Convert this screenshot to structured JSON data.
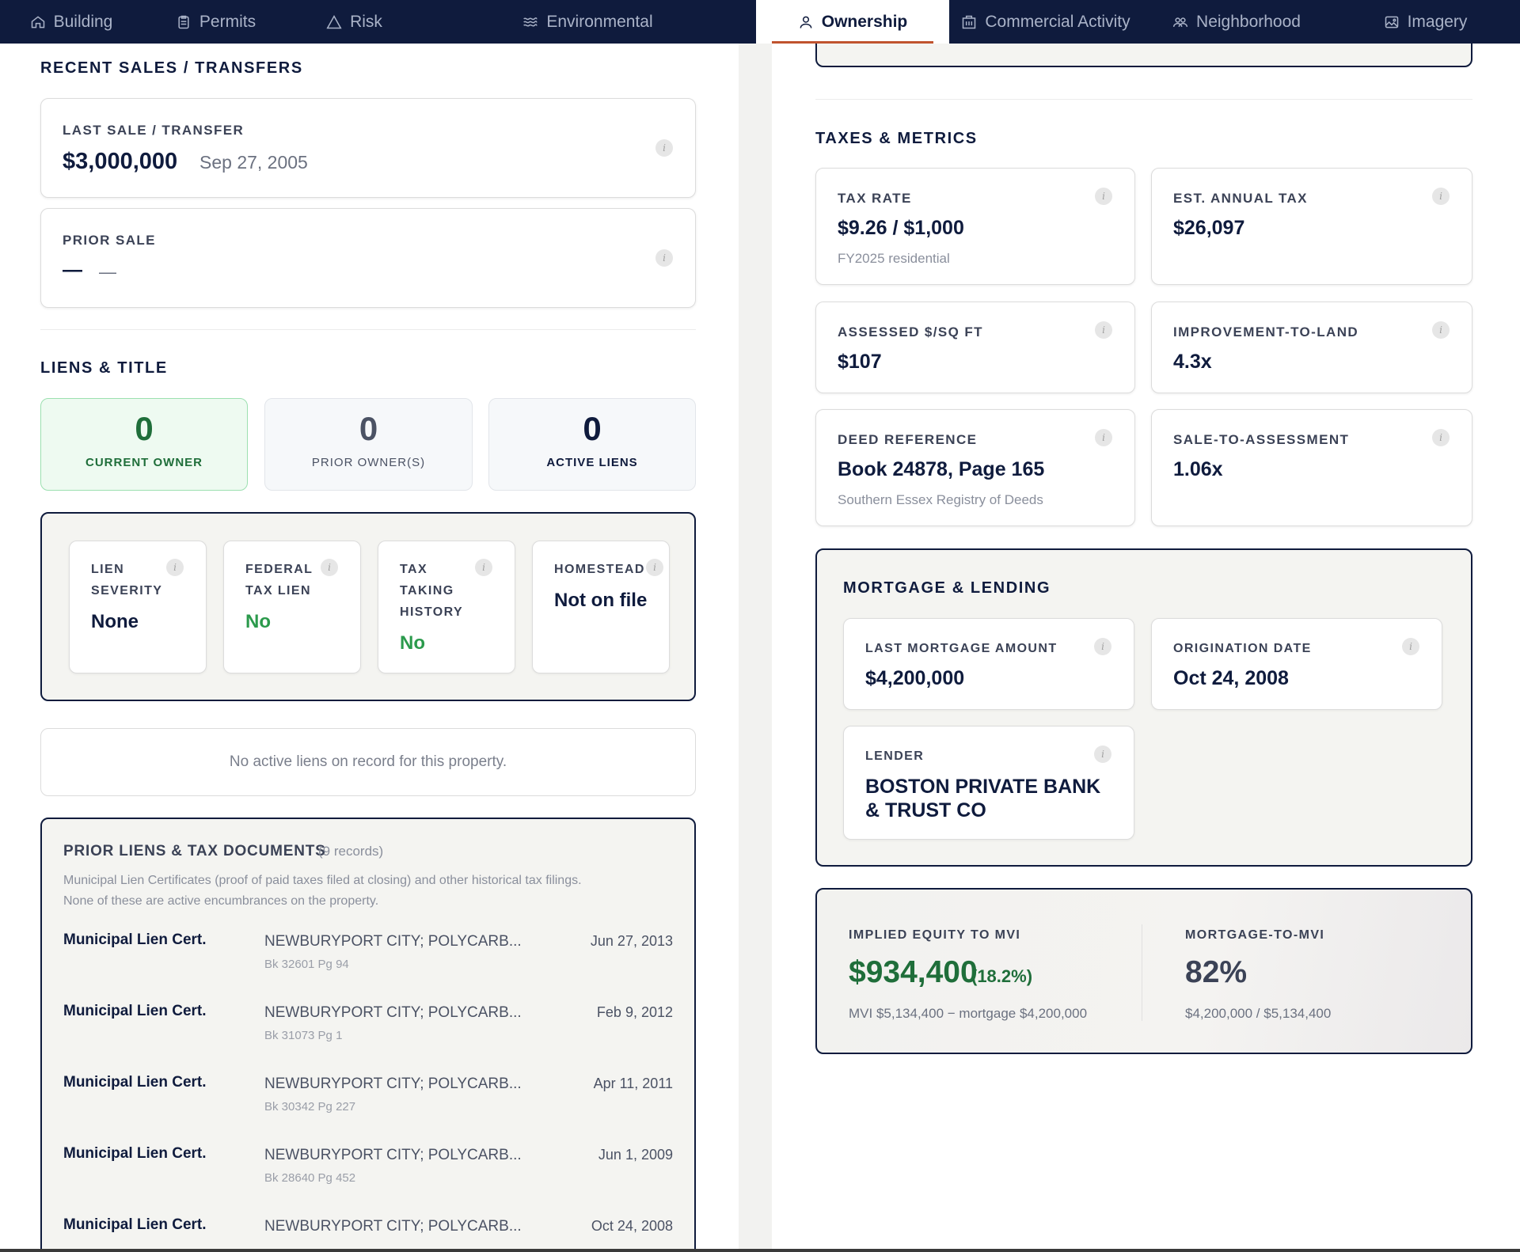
{
  "nav": {
    "tabs": [
      {
        "label": "Building",
        "icon": "home-icon"
      },
      {
        "label": "Permits",
        "icon": "clipboard-icon"
      },
      {
        "label": "Risk",
        "icon": "warning-icon"
      },
      {
        "label": "Environmental",
        "icon": "waves-icon"
      },
      {
        "label": "Ownership",
        "icon": "user-icon",
        "active": true
      },
      {
        "label": "Commercial Activity",
        "icon": "building-icon"
      },
      {
        "label": "Neighborhood",
        "icon": "people-icon"
      },
      {
        "label": "Imagery",
        "icon": "image-icon"
      }
    ]
  },
  "sales": {
    "title": "RECENT SALES / TRANSFERS",
    "last_label": "LAST SALE / TRANSFER",
    "last_amount": "$3,000,000",
    "last_date": "Sep 27, 2005",
    "prior_label": "PRIOR SALE",
    "prior_amount": "—",
    "prior_date": "—"
  },
  "liens": {
    "title": "LIENS & TITLE",
    "stats": [
      {
        "num": "0",
        "caption": "CURRENT OWNER"
      },
      {
        "num": "0",
        "caption": "PRIOR OWNER(S)"
      },
      {
        "num": "0",
        "caption": "ACTIVE LIENS"
      }
    ],
    "details": [
      {
        "label": "LIEN SEVERITY",
        "value": "None"
      },
      {
        "label": "FEDERAL TAX LIEN",
        "value": "No"
      },
      {
        "label": "TAX TAKING HISTORY",
        "value": "No"
      },
      {
        "label": "HOMESTEAD",
        "value": "Not on file"
      }
    ],
    "empty_message": "No active liens on record for this property."
  },
  "prior_docs": {
    "title": "PRIOR LIENS & TAX DOCUMENTS",
    "count": "(9 records)",
    "description_1": "Municipal Lien Certificates (proof of paid taxes filed at closing) and other historical tax filings.",
    "description_2": "None of these are active encumbrances on the property.",
    "rows": [
      {
        "title": "Municipal Lien Cert.",
        "party": "NEWBURYPORT CITY; POLYCARB...",
        "book": "Bk 32601 Pg 94",
        "date": "Jun 27, 2013"
      },
      {
        "title": "Municipal Lien Cert.",
        "party": "NEWBURYPORT CITY; POLYCARB...",
        "book": "Bk 31073 Pg 1",
        "date": "Feb 9, 2012"
      },
      {
        "title": "Municipal Lien Cert.",
        "party": "NEWBURYPORT CITY; POLYCARB...",
        "book": "Bk 30342 Pg 227",
        "date": "Apr 11, 2011"
      },
      {
        "title": "Municipal Lien Cert.",
        "party": "NEWBURYPORT CITY; POLYCARB...",
        "book": "Bk 28640 Pg 452",
        "date": "Jun 1, 2009"
      },
      {
        "title": "Municipal Lien Cert.",
        "party": "NEWBURYPORT CITY; POLYCARB...",
        "book": "",
        "date": "Oct 24, 2008"
      }
    ]
  },
  "taxes": {
    "title": "TAXES & METRICS",
    "tax_rate_label": "TAX RATE",
    "tax_rate_value": "$9.26 / $1,000",
    "tax_rate_sub": "FY2025 residential",
    "annual_label": "EST. ANNUAL TAX",
    "annual_value": "$26,097",
    "assessed_label": "ASSESSED $/SQ FT",
    "assessed_value": "$107",
    "improvement_label": "IMPROVEMENT-TO-LAND",
    "improvement_value": "4.3x",
    "deed_label": "DEED REFERENCE",
    "deed_value": "Book 24878, Page 165",
    "deed_sub": "Southern Essex Registry of Deeds",
    "sale_assess_label": "SALE-TO-ASSESSMENT",
    "sale_assess_value": "1.06x"
  },
  "mortgage": {
    "title": "MORTGAGE & LENDING",
    "amount_label": "LAST MORTGAGE AMOUNT",
    "amount_value": "$4,200,000",
    "origination_label": "ORIGINATION DATE",
    "origination_value": "Oct 24, 2008",
    "lender_label": "LENDER",
    "lender_value": "BOSTON PRIVATE BANK & TRUST CO"
  },
  "equity": {
    "equity_label": "IMPLIED EQUITY TO MVI",
    "equity_value": "$934,400",
    "equity_pct": "(18.2%)",
    "equity_sub": "MVI $5,134,400 − mortgage $4,200,000",
    "ratio_label": "MORTGAGE-TO-MVI",
    "ratio_value": "82%",
    "ratio_sub": "$4,200,000 / $5,134,400"
  },
  "colors": {
    "navy": "#0f1b3d",
    "accent": "#c0532e",
    "green": "#2b9a4c"
  }
}
